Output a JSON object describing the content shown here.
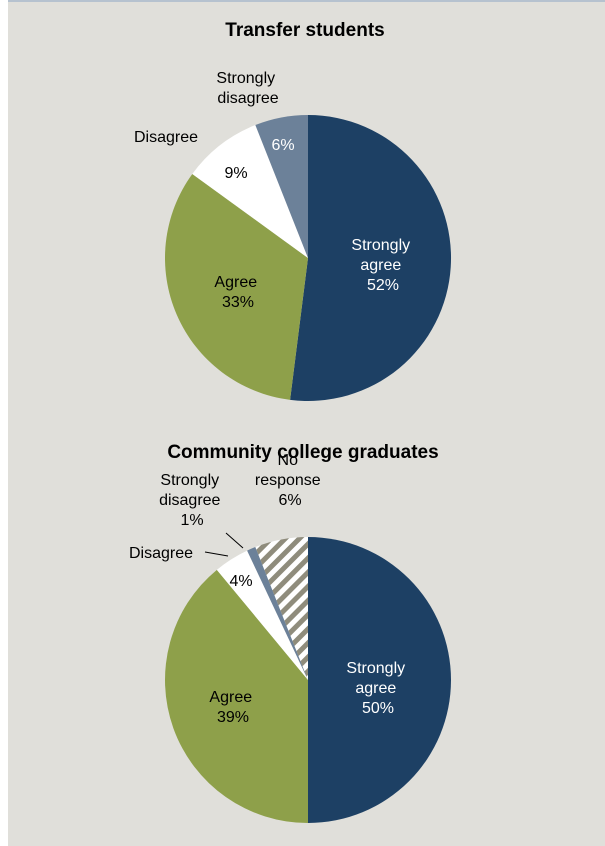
{
  "colors": {
    "strongly_agree": "#1d4064",
    "agree": "#8ea04a",
    "disagree": "#ffffff",
    "strongly_disagree": "#6c8199",
    "no_response_stripe_a": "#8f8c7c",
    "no_response_stripe_b": "#ffffff",
    "background": "#e0dfda"
  },
  "chart_data": [
    {
      "type": "pie",
      "title": "Transfer students",
      "slices": [
        {
          "category": "Strongly agree",
          "value": 52,
          "label": "52%"
        },
        {
          "category": "Agree",
          "value": 33,
          "label": "33%"
        },
        {
          "category": "Disagree",
          "value": 9,
          "label": "9%"
        },
        {
          "category": "Strongly disagree",
          "value": 6,
          "label": "6%"
        }
      ]
    },
    {
      "type": "pie",
      "title": "Community college graduates",
      "slices": [
        {
          "category": "Strongly agree",
          "value": 50,
          "label": "50%"
        },
        {
          "category": "Agree",
          "value": 39,
          "label": "39%"
        },
        {
          "category": "Disagree",
          "value": 4,
          "label": "4%"
        },
        {
          "category": "Strongly disagree",
          "value": 1,
          "label": "1%"
        },
        {
          "category": "No response",
          "value": 6,
          "label": "6%"
        }
      ]
    }
  ]
}
